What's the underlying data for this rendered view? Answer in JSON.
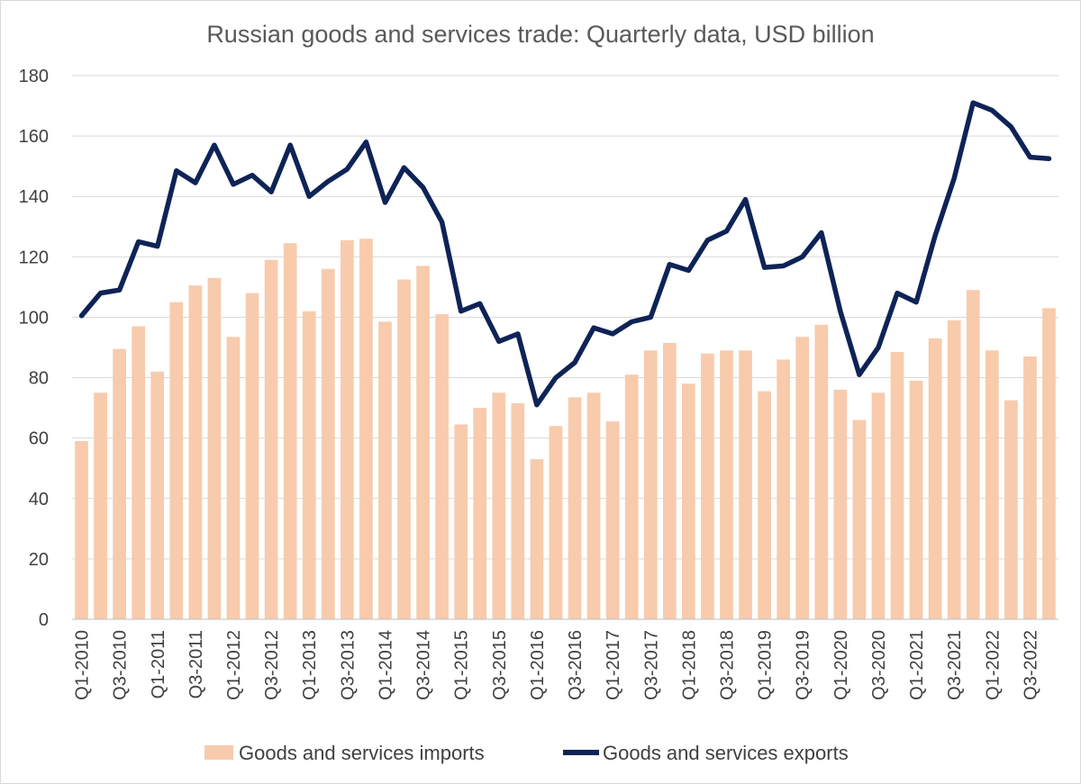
{
  "chart_data": {
    "type": "bar",
    "title": "Russian goods and services trade: Quarterly data, USD billion",
    "xlabel": "",
    "ylabel": "",
    "ylim": [
      0,
      180
    ],
    "yticks": [
      0,
      20,
      40,
      60,
      80,
      100,
      120,
      140,
      160,
      180
    ],
    "grid": true,
    "legend_position": "bottom",
    "categories": [
      "Q1-2010",
      "Q2-2010",
      "Q3-2010",
      "Q4-2010",
      "Q1-2011",
      "Q2-2011",
      "Q3-2011",
      "Q4-2011",
      "Q1-2012",
      "Q2-2012",
      "Q3-2012",
      "Q4-2012",
      "Q1-2013",
      "Q2-2013",
      "Q3-2013",
      "Q4-2013",
      "Q1-2014",
      "Q2-2014",
      "Q3-2014",
      "Q4-2014",
      "Q1-2015",
      "Q2-2015",
      "Q3-2015",
      "Q4-2015",
      "Q1-2016",
      "Q2-2016",
      "Q3-2016",
      "Q4-2016",
      "Q1-2017",
      "Q2-2017",
      "Q3-2017",
      "Q4-2017",
      "Q1-2018",
      "Q2-2018",
      "Q3-2018",
      "Q4-2018",
      "Q1-2019",
      "Q2-2019",
      "Q3-2019",
      "Q4-2019",
      "Q1-2020",
      "Q2-2020",
      "Q3-2020",
      "Q4-2020",
      "Q1-2021",
      "Q2-2021",
      "Q3-2021",
      "Q4-2021",
      "Q1-2022",
      "Q2-2022",
      "Q3-2022",
      "Q4-2022"
    ],
    "tick_labels": [
      "Q1-2010",
      "",
      "Q3-2010",
      "",
      "Q1-2011",
      "",
      "Q3-2011",
      "",
      "Q1-2012",
      "",
      "Q3-2012",
      "",
      "Q1-2013",
      "",
      "Q3-2013",
      "",
      "Q1-2014",
      "",
      "Q3-2014",
      "",
      "Q1-2015",
      "",
      "Q3-2015",
      "",
      "Q1-2016",
      "",
      "Q3-2016",
      "",
      "Q1-2017",
      "",
      "Q3-2017",
      "",
      "Q1-2018",
      "",
      "Q3-2018",
      "",
      "Q1-2019",
      "",
      "Q3-2019",
      "",
      "Q1-2020",
      "",
      "Q3-2020",
      "",
      "Q1-2021",
      "",
      "Q3-2021",
      "",
      "Q1-2022",
      "",
      "Q3-2022",
      ""
    ],
    "series": [
      {
        "name": "Goods and services imports",
        "type": "bar",
        "color": "#f8cbad",
        "values": [
          59,
          75,
          89.5,
          97,
          82,
          105,
          110.5,
          113,
          93.5,
          108,
          119,
          124.5,
          102,
          116,
          125.5,
          126,
          98.5,
          112.5,
          117,
          101,
          64.5,
          70,
          75,
          71.5,
          53,
          64,
          73.5,
          75,
          65.5,
          81,
          89,
          91.5,
          78,
          88,
          89,
          89,
          75.5,
          86,
          93.5,
          97.5,
          76,
          66,
          75,
          88.5,
          79,
          93,
          99,
          109,
          89,
          72.5,
          87,
          103
        ]
      },
      {
        "name": "Goods and services exports",
        "type": "line",
        "color": "#0e2356",
        "values": [
          100.5,
          108,
          109,
          125,
          123.5,
          148.5,
          144.5,
          157,
          144,
          147,
          141.5,
          157,
          140,
          145,
          149,
          158,
          138,
          149.5,
          143,
          131.5,
          102,
          104.5,
          92,
          94.5,
          71,
          80,
          85,
          96.5,
          94.5,
          98.5,
          100,
          117.5,
          115.5,
          125.5,
          128.5,
          139,
          116.5,
          117,
          120,
          128,
          102,
          81,
          90,
          108,
          105,
          127,
          146,
          171,
          168.5,
          163,
          153,
          152.5
        ]
      }
    ]
  }
}
